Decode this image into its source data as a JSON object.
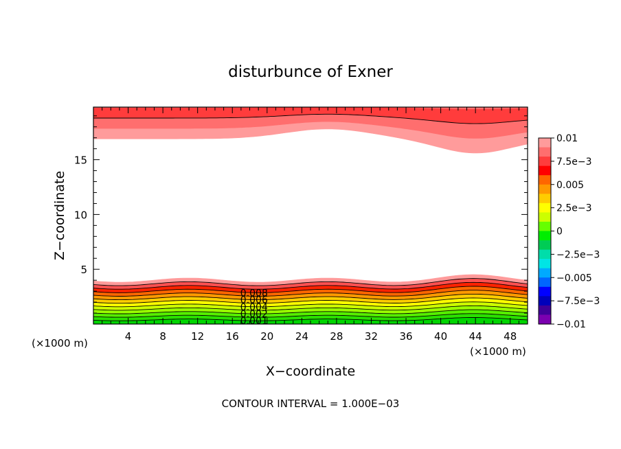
{
  "chart_data": {
    "type": "contour",
    "title": "disturbunce of Exner",
    "xlabel": "X−coordinate",
    "ylabel": "Z−coordinate",
    "x_unit_left": "(×1000 m)",
    "x_unit_right": "(×1000 m)",
    "footer": "CONTOUR INTERVAL = 1.000E−03",
    "xlim": [
      0,
      50
    ],
    "ylim": [
      0,
      19.8
    ],
    "x_ticks": [
      4,
      8,
      12,
      16,
      20,
      24,
      28,
      32,
      36,
      40,
      44,
      48
    ],
    "y_ticks": [
      5,
      10,
      15
    ],
    "contour_labels": [
      "0.008",
      "0.006",
      "0.004",
      "0.002",
      "0.001"
    ],
    "colorbar": {
      "range": [
        -0.01,
        0.01
      ],
      "tick_labels": [
        "0.01",
        "7.5e−3",
        "0.005",
        "2.5e−3",
        "0",
        "−2.5e−3",
        "−0.005",
        "−7.5e−3",
        "−0.01"
      ],
      "colors": [
        "#ff9b9b",
        "#ff6e6e",
        "#ff3c3c",
        "#ff0000",
        "#ff6600",
        "#ff9900",
        "#ffcc00",
        "#ffff00",
        "#ccff00",
        "#66ff00",
        "#00ee00",
        "#00cc55",
        "#00ddaa",
        "#00e5e5",
        "#00aaff",
        "#0066ff",
        "#0000ff",
        "#0000bb",
        "#400099",
        "#7b00b0"
      ]
    },
    "grid": false
  }
}
